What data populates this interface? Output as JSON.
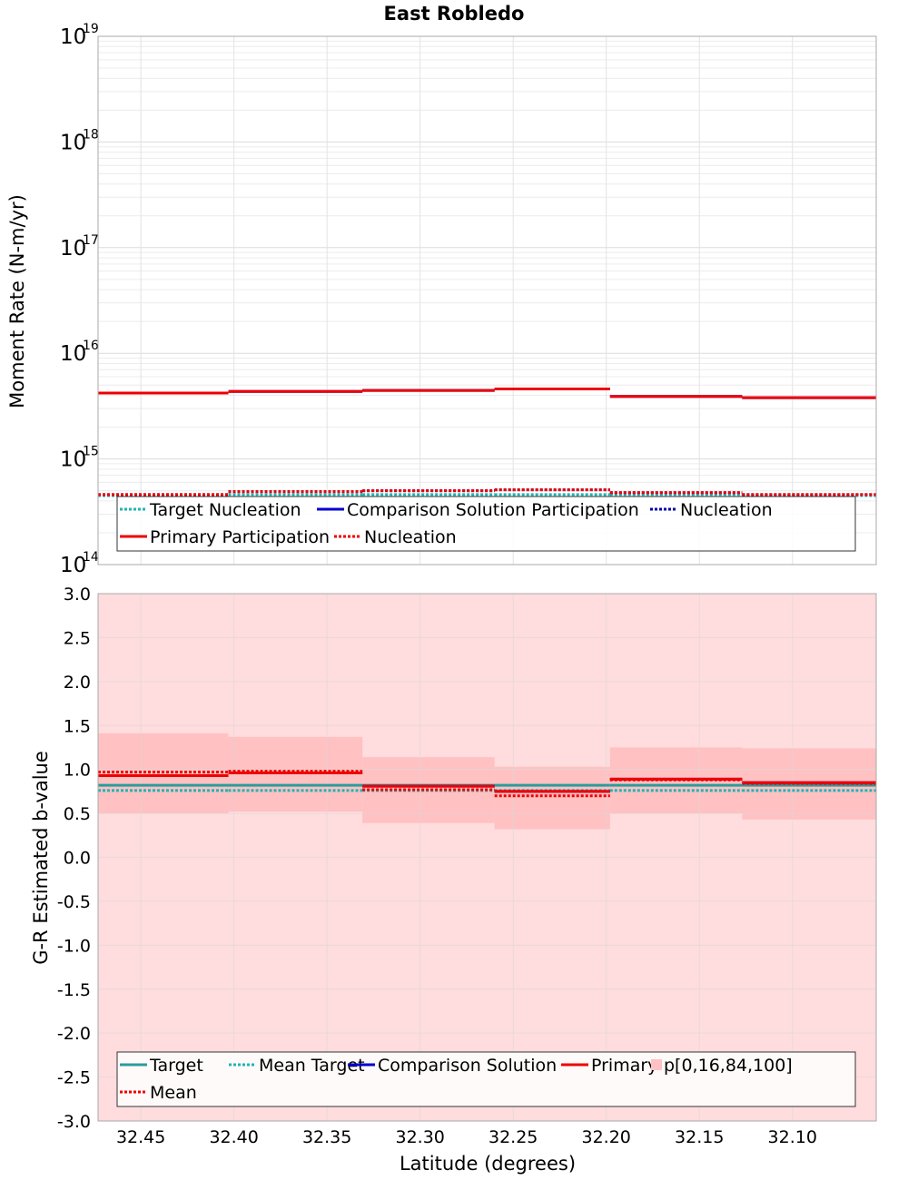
{
  "chart_data": [
    {
      "type": "line",
      "title": "East Robledo",
      "ylabel": "Moment Rate (N-m/yr)",
      "yscale": "log",
      "ylim": [
        100000000000000.0,
        1e+19
      ],
      "xlim": [
        32.473,
        32.055
      ],
      "x_reversed": true,
      "grid": true,
      "y_ticks": [
        {
          "base": "10",
          "exp": "19",
          "value": 1e+19
        },
        {
          "base": "10",
          "exp": "18",
          "value": 1e+18
        },
        {
          "base": "10",
          "exp": "17",
          "value": 1e+17
        },
        {
          "base": "10",
          "exp": "16",
          "value": 1e+16
        },
        {
          "base": "10",
          "exp": "15",
          "value": 1000000000000000.0
        },
        {
          "base": "10",
          "exp": "14",
          "value": 100000000000000.0
        }
      ],
      "x_edges": [
        32.473,
        32.403,
        32.331,
        32.26,
        32.198,
        32.127,
        32.055
      ],
      "series": [
        {
          "name": "Target Nucleation",
          "color": "#1fb5b5",
          "dash": true,
          "values": [
            450000000000000.0,
            460000000000000.0,
            460000000000000.0,
            460000000000000.0,
            460000000000000.0,
            450000000000000.0
          ]
        },
        {
          "name": "Comparison Solution Participation",
          "color": "#0000cc",
          "dash": false,
          "values": [
            4200000000000000.0,
            4350000000000000.0,
            4450000000000000.0,
            4600000000000000.0,
            3900000000000000.0,
            3800000000000000.0
          ]
        },
        {
          "name": "Nucleation",
          "color": "#0000aa",
          "dash": true,
          "values": [
            460000000000000.0,
            490000000000000.0,
            500000000000000.0,
            510000000000000.0,
            480000000000000.0,
            460000000000000.0
          ]
        },
        {
          "name": "Primary Participation",
          "color": "#ee0000",
          "dash": false,
          "values": [
            4200000000000000.0,
            4350000000000000.0,
            4450000000000000.0,
            4600000000000000.0,
            3900000000000000.0,
            3800000000000000.0
          ]
        },
        {
          "name": "Nucleation",
          "color": "#ee0000",
          "dash": true,
          "values": [
            460000000000000.0,
            490000000000000.0,
            500000000000000.0,
            510000000000000.0,
            480000000000000.0,
            460000000000000.0
          ]
        }
      ],
      "legend": {
        "position": "bottom",
        "rows": [
          [
            {
              "label": "Target Nucleation",
              "color": "#1fb5b5",
              "dash": true
            },
            {
              "label": "Comparison Solution Participation",
              "color": "#0000cc",
              "dash": false
            },
            {
              "label": "Nucleation",
              "color": "#0000aa",
              "dash": true
            }
          ],
          [
            {
              "label": "Primary Participation",
              "color": "#ee0000",
              "dash": false
            },
            {
              "label": "Nucleation",
              "color": "#ee0000",
              "dash": true
            }
          ]
        ]
      }
    },
    {
      "type": "line",
      "xlabel": "Latitude (degrees)",
      "ylabel": "G-R Estimated b-value",
      "ylim": [
        -3.0,
        3.0
      ],
      "xlim": [
        32.473,
        32.055
      ],
      "x_reversed": true,
      "grid": true,
      "y_ticks": [
        "3.0",
        "2.5",
        "2.0",
        "1.5",
        "1.0",
        "0.5",
        "0.0",
        "-0.5",
        "-1.0",
        "-1.5",
        "-2.0",
        "-2.5",
        "-3.0"
      ],
      "x_ticks": [
        "32.45",
        "32.40",
        "32.35",
        "32.30",
        "32.25",
        "32.20",
        "32.15",
        "32.10"
      ],
      "x_tick_values": [
        32.45,
        32.4,
        32.35,
        32.3,
        32.25,
        32.2,
        32.15,
        32.1
      ],
      "x_edges": [
        32.473,
        32.403,
        32.331,
        32.26,
        32.198,
        32.127,
        32.055
      ],
      "band_outer": {
        "low": -3.0,
        "high": 3.0,
        "color": "#ffdcdd"
      },
      "band_inner": {
        "color": "#ffc1c2",
        "low": [
          0.5,
          0.52,
          0.39,
          0.32,
          0.5,
          0.43
        ],
        "high": [
          1.41,
          1.37,
          1.14,
          1.03,
          1.25,
          1.24
        ]
      },
      "series": [
        {
          "name": "Target",
          "color": "#2a9c9c",
          "dash": false,
          "values": [
            0.82,
            0.82,
            0.82,
            0.82,
            0.82,
            0.82
          ]
        },
        {
          "name": "Mean Target",
          "color": "#1fb5b5",
          "dash": true,
          "values": [
            0.76,
            0.76,
            0.76,
            0.76,
            0.76,
            0.76
          ]
        },
        {
          "name": "Comparison Solution",
          "color": "#0000cc",
          "dash": false,
          "values": [
            0.93,
            0.96,
            0.81,
            0.75,
            0.89,
            0.85
          ]
        },
        {
          "name": "Primary",
          "color": "#ee0000",
          "dash": false,
          "values": [
            0.93,
            0.96,
            0.81,
            0.75,
            0.89,
            0.85
          ]
        },
        {
          "name": "Mean",
          "color": "#ee0000",
          "dash": true,
          "values": [
            0.97,
            0.98,
            0.77,
            0.7,
            0.88,
            0.84
          ]
        }
      ],
      "legend": {
        "position": "bottom",
        "rows": [
          [
            {
              "label": "Target",
              "color": "#2a9c9c",
              "dash": false
            },
            {
              "label": "Mean Target",
              "color": "#1fb5b5",
              "dash": true
            },
            {
              "label": "Comparison Solution",
              "color": "#0000cc",
              "dash": false
            },
            {
              "label": "Primary",
              "color": "#ee0000",
              "dash": false
            },
            {
              "label": "p[0,16,84,100]",
              "color": "#ffc1c2",
              "swatch": true
            }
          ],
          [
            {
              "label": "Mean",
              "color": "#ee0000",
              "dash": true
            }
          ]
        ]
      }
    }
  ]
}
